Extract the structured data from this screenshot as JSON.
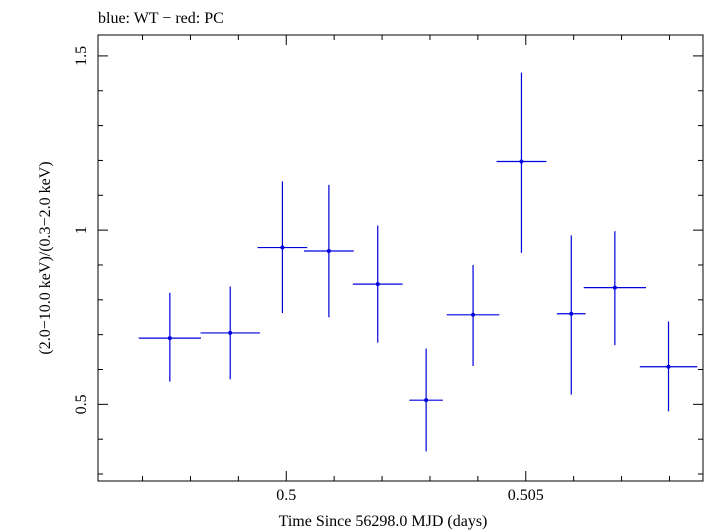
{
  "chart_data": {
    "type": "scatter",
    "title": "blue: WT − red: PC",
    "xlabel": "Time Since 56298.0 MJD (days)",
    "ylabel": "(2.0−10.0 keV)/(0.3−2.0 keV)",
    "xlim": [
      0.49607,
      0.5087
    ],
    "ylim": [
      0.28,
      1.56
    ],
    "x_ticks": [
      0.5,
      0.505
    ],
    "x_tick_labels": [
      "0.5",
      "0.505"
    ],
    "y_ticks": [
      0.5,
      1,
      1.5
    ],
    "y_tick_labels": [
      "0.5",
      "1",
      "1.5"
    ],
    "grid": false,
    "series": [
      {
        "name": "WT",
        "color": "#0000dd",
        "points": [
          {
            "x": 0.49757,
            "xerr": 0.00065,
            "y": 0.69,
            "ylo": 0.565,
            "yhi": 0.82
          },
          {
            "x": 0.49883,
            "xerr": 0.00062,
            "y": 0.705,
            "ylo": 0.572,
            "yhi": 0.838
          },
          {
            "x": 0.49992,
            "xerr": 0.00052,
            "y": 0.95,
            "ylo": 0.762,
            "yhi": 1.14
          },
          {
            "x": 0.50089,
            "xerr": 0.00052,
            "y": 0.94,
            "ylo": 0.75,
            "yhi": 1.13
          },
          {
            "x": 0.50191,
            "xerr": 0.00052,
            "y": 0.845,
            "ylo": 0.677,
            "yhi": 1.013
          },
          {
            "x": 0.50292,
            "xerr": 0.00035,
            "y": 0.512,
            "ylo": 0.365,
            "yhi": 0.66
          },
          {
            "x": 0.5039,
            "xerr": 0.00055,
            "y": 0.757,
            "ylo": 0.61,
            "yhi": 0.9
          },
          {
            "x": 0.50491,
            "xerr": 0.00052,
            "y": 1.197,
            "ylo": 0.935,
            "yhi": 1.452
          },
          {
            "x": 0.50595,
            "xerr": 0.0003,
            "y": 0.76,
            "ylo": 0.528,
            "yhi": 0.985
          },
          {
            "x": 0.50686,
            "xerr": 0.00065,
            "y": 0.835,
            "ylo": 0.67,
            "yhi": 0.997
          },
          {
            "x": 0.50798,
            "xerr": 0.0006,
            "y": 0.608,
            "ylo": 0.48,
            "yhi": 0.738
          }
        ]
      }
    ]
  }
}
